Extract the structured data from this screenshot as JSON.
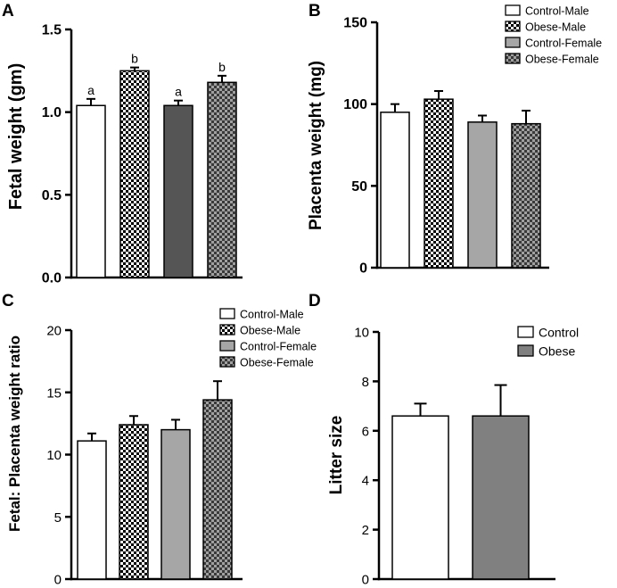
{
  "colors": {
    "control_male": "#ffffff",
    "obese_male_dark": "#000000",
    "obese_male_light": "#ffffff",
    "control_female": "#555555",
    "control_female_light": "#a6a6a6",
    "obese_female_dark": "#3a3a3a",
    "obese_female_light": "#a0a0a0",
    "obese_litter": "#808080"
  },
  "chart_data": [
    {
      "panel": "A",
      "type": "bar",
      "ylabel": "Fetal weight (gm)",
      "ylim": [
        0,
        1.5
      ],
      "yticks": [
        "0.0",
        "0.5",
        "1.0",
        "1.5"
      ],
      "tick_values": [
        0,
        0.5,
        1.0,
        1.5
      ],
      "categories": [
        "Control-Male",
        "Obese-Male",
        "Control-Female",
        "Obese-Female"
      ],
      "values": [
        1.04,
        1.25,
        1.04,
        1.18
      ],
      "errors": [
        0.04,
        0.02,
        0.03,
        0.04
      ],
      "significance": [
        "a",
        "b",
        "a",
        "b"
      ],
      "legend": []
    },
    {
      "panel": "B",
      "type": "bar",
      "ylabel": "Placenta weight (mg)",
      "ylim": [
        0,
        150
      ],
      "yticks": [
        "0",
        "50",
        "100",
        "150"
      ],
      "tick_values": [
        0,
        50,
        100,
        150
      ],
      "categories": [
        "Control-Male",
        "Obese-Male",
        "Control-Female",
        "Obese-Female"
      ],
      "values": [
        95,
        103,
        89,
        88
      ],
      "errors": [
        5,
        5,
        4,
        8
      ],
      "legend": [
        "Control-Male",
        "Obese-Male",
        "Control-Female",
        "Obese-Female"
      ]
    },
    {
      "panel": "C",
      "type": "bar",
      "ylabel": "Fetal: Placenta weight ratio",
      "ylim": [
        0,
        20
      ],
      "yticks": [
        "0",
        "5",
        "10",
        "15",
        "20"
      ],
      "tick_values": [
        0,
        5,
        10,
        15,
        20
      ],
      "categories": [
        "Control-Male",
        "Obese-Male",
        "Control-Female",
        "Obese-Female"
      ],
      "values": [
        11.1,
        12.4,
        12.0,
        14.4
      ],
      "errors": [
        0.6,
        0.7,
        0.8,
        1.5
      ],
      "legend": [
        "Control-Male",
        "Obese-Male",
        "Control-Female",
        "Obese-Female"
      ]
    },
    {
      "panel": "D",
      "type": "bar",
      "ylabel": "Litter size",
      "ylim": [
        0,
        10
      ],
      "yticks": [
        "0",
        "2",
        "4",
        "6",
        "8",
        "10"
      ],
      "tick_values": [
        0,
        2,
        4,
        6,
        8,
        10
      ],
      "categories": [
        "Control",
        "Obese"
      ],
      "values": [
        6.6,
        6.6
      ],
      "errors": [
        0.5,
        1.25
      ],
      "legend": [
        "Control",
        "Obese"
      ]
    }
  ]
}
